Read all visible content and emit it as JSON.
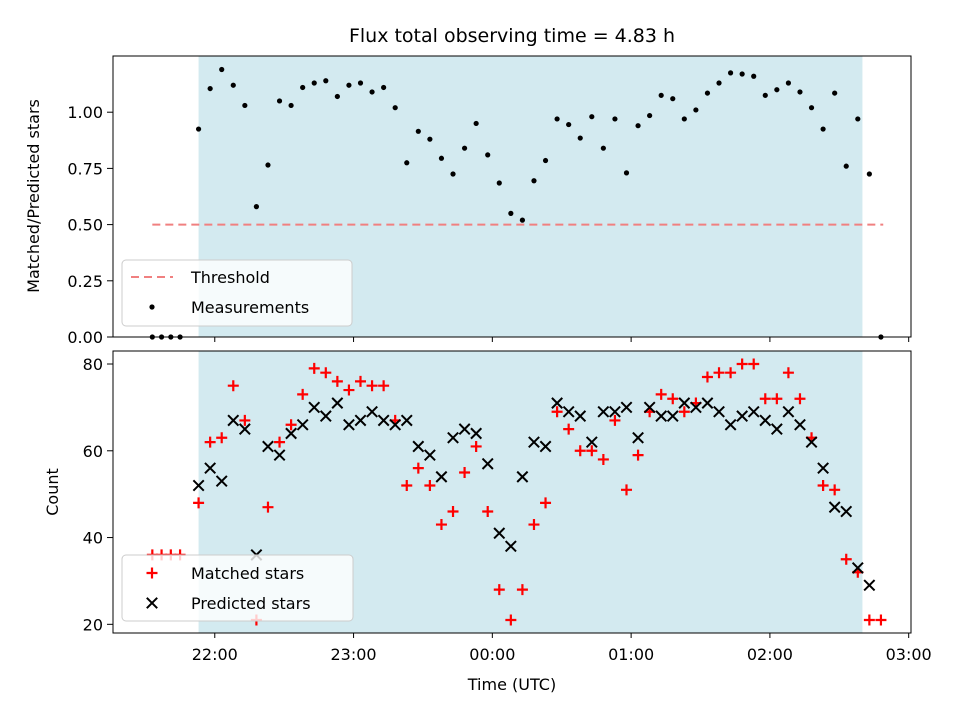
{
  "chart_data": [
    {
      "type": "scatter",
      "title": "Flux total observing time = 4.83 h",
      "xlabel": "",
      "ylabel": "Matched/Predicted stars",
      "ylim": [
        0,
        1.25
      ],
      "yticks": [
        "0.00",
        "0.25",
        "0.50",
        "0.75",
        "1.00"
      ],
      "x_time_range": [
        "21:16",
        "03:01"
      ],
      "shaded_span": [
        "21:53",
        "02:40"
      ],
      "shade_color": "#d3eaf0",
      "threshold": 0.5,
      "legend_position": "lower-left",
      "legend": [
        {
          "label": "Threshold",
          "style": "dashed-line",
          "color": "#f08080"
        },
        {
          "label": "Measurements",
          "style": "dot",
          "color": "#000000"
        }
      ],
      "series": [
        {
          "name": "Measurements",
          "color": "#000000",
          "points": [
            [
              "21:33",
              0.0
            ],
            [
              "21:37",
              0.0
            ],
            [
              "21:41",
              0.0
            ],
            [
              "21:45",
              0.0
            ],
            [
              "21:53",
              0.925
            ],
            [
              "21:58",
              1.105
            ],
            [
              "22:03",
              1.19
            ],
            [
              "22:08",
              1.12
            ],
            [
              "22:13",
              1.03
            ],
            [
              "22:18",
              0.58
            ],
            [
              "22:23",
              0.765
            ],
            [
              "22:28",
              1.05
            ],
            [
              "22:33",
              1.03
            ],
            [
              "22:38",
              1.11
            ],
            [
              "22:43",
              1.13
            ],
            [
              "22:48",
              1.14
            ],
            [
              "22:53",
              1.07
            ],
            [
              "22:58",
              1.12
            ],
            [
              "23:03",
              1.13
            ],
            [
              "23:08",
              1.09
            ],
            [
              "23:13",
              1.11
            ],
            [
              "23:18",
              1.02
            ],
            [
              "23:23",
              0.775
            ],
            [
              "23:28",
              0.915
            ],
            [
              "23:33",
              0.88
            ],
            [
              "23:38",
              0.795
            ],
            [
              "23:43",
              0.725
            ],
            [
              "23:48",
              0.84
            ],
            [
              "23:53",
              0.95
            ],
            [
              "23:58",
              0.81
            ],
            [
              "00:03",
              0.685
            ],
            [
              "00:08",
              0.55
            ],
            [
              "00:13",
              0.52
            ],
            [
              "00:18",
              0.695
            ],
            [
              "00:23",
              0.785
            ],
            [
              "00:28",
              0.97
            ],
            [
              "00:33",
              0.945
            ],
            [
              "00:38",
              0.885
            ],
            [
              "00:43",
              0.98
            ],
            [
              "00:48",
              0.84
            ],
            [
              "00:53",
              0.97
            ],
            [
              "00:58",
              0.73
            ],
            [
              "01:03",
              0.94
            ],
            [
              "01:08",
              0.985
            ],
            [
              "01:13",
              1.075
            ],
            [
              "01:18",
              1.06
            ],
            [
              "01:23",
              0.97
            ],
            [
              "01:28",
              1.01
            ],
            [
              "01:33",
              1.085
            ],
            [
              "01:38",
              1.13
            ],
            [
              "01:43",
              1.175
            ],
            [
              "01:48",
              1.17
            ],
            [
              "01:53",
              1.16
            ],
            [
              "01:58",
              1.075
            ],
            [
              "02:03",
              1.1
            ],
            [
              "02:08",
              1.13
            ],
            [
              "02:13",
              1.09
            ],
            [
              "02:18",
              1.02
            ],
            [
              "02:23",
              0.925
            ],
            [
              "02:28",
              1.085
            ],
            [
              "02:33",
              0.76
            ],
            [
              "02:38",
              0.97
            ],
            [
              "02:43",
              0.725
            ],
            [
              "02:48",
              0.0
            ]
          ]
        }
      ]
    },
    {
      "type": "scatter",
      "title": "",
      "xlabel": "Time (UTC)",
      "ylabel": "Count",
      "ylim": [
        18,
        83
      ],
      "yticks": [
        "20",
        "40",
        "60",
        "80"
      ],
      "xticks": [
        "22:00",
        "23:00",
        "00:00",
        "01:00",
        "02:00",
        "03:00"
      ],
      "x_time_range": [
        "21:16",
        "03:01"
      ],
      "shaded_span": [
        "21:53",
        "02:40"
      ],
      "shade_color": "#d3eaf0",
      "legend_position": "lower-left",
      "legend": [
        {
          "label": "Matched stars",
          "style": "plus",
          "color": "#ff0000"
        },
        {
          "label": "Predicted stars",
          "style": "x",
          "color": "#000000"
        }
      ],
      "series": [
        {
          "name": "Matched stars",
          "marker": "plus",
          "color": "#ff0000",
          "points": [
            [
              "21:33",
              36
            ],
            [
              "21:37",
              36
            ],
            [
              "21:41",
              36
            ],
            [
              "21:45",
              36
            ],
            [
              "21:53",
              48
            ],
            [
              "21:58",
              62
            ],
            [
              "22:03",
              63
            ],
            [
              "22:08",
              75
            ],
            [
              "22:13",
              67
            ],
            [
              "22:18",
              21
            ],
            [
              "22:23",
              47
            ],
            [
              "22:28",
              62
            ],
            [
              "22:33",
              66
            ],
            [
              "22:38",
              73
            ],
            [
              "22:43",
              79
            ],
            [
              "22:48",
              78
            ],
            [
              "22:53",
              76
            ],
            [
              "22:58",
              74
            ],
            [
              "23:03",
              76
            ],
            [
              "23:08",
              75
            ],
            [
              "23:13",
              75
            ],
            [
              "23:18",
              67
            ],
            [
              "23:23",
              52
            ],
            [
              "23:28",
              56
            ],
            [
              "23:33",
              52
            ],
            [
              "23:38",
              43
            ],
            [
              "23:43",
              46
            ],
            [
              "23:48",
              55
            ],
            [
              "23:53",
              61
            ],
            [
              "23:58",
              46
            ],
            [
              "00:03",
              28
            ],
            [
              "00:08",
              21
            ],
            [
              "00:13",
              28
            ],
            [
              "00:18",
              43
            ],
            [
              "00:23",
              48
            ],
            [
              "00:28",
              69
            ],
            [
              "00:33",
              65
            ],
            [
              "00:38",
              60
            ],
            [
              "00:43",
              60
            ],
            [
              "00:48",
              58
            ],
            [
              "00:53",
              67
            ],
            [
              "00:58",
              51
            ],
            [
              "01:03",
              59
            ],
            [
              "01:08",
              69
            ],
            [
              "01:13",
              73
            ],
            [
              "01:18",
              72
            ],
            [
              "01:23",
              69
            ],
            [
              "01:28",
              71
            ],
            [
              "01:33",
              77
            ],
            [
              "01:38",
              78
            ],
            [
              "01:43",
              78
            ],
            [
              "01:48",
              80
            ],
            [
              "01:53",
              80
            ],
            [
              "01:58",
              72
            ],
            [
              "02:03",
              72
            ],
            [
              "02:08",
              78
            ],
            [
              "02:13",
              72
            ],
            [
              "02:18",
              63
            ],
            [
              "02:23",
              52
            ],
            [
              "02:28",
              51
            ],
            [
              "02:33",
              35
            ],
            [
              "02:38",
              32
            ],
            [
              "02:43",
              21
            ],
            [
              "02:48",
              21
            ]
          ]
        },
        {
          "name": "Predicted stars",
          "marker": "x",
          "color": "#000000",
          "points": [
            [
              "21:53",
              52
            ],
            [
              "21:58",
              56
            ],
            [
              "22:03",
              53
            ],
            [
              "22:08",
              67
            ],
            [
              "22:13",
              65
            ],
            [
              "22:18",
              36
            ],
            [
              "22:23",
              61
            ],
            [
              "22:28",
              59
            ],
            [
              "22:33",
              64
            ],
            [
              "22:38",
              66
            ],
            [
              "22:43",
              70
            ],
            [
              "22:48",
              68
            ],
            [
              "22:53",
              71
            ],
            [
              "22:58",
              66
            ],
            [
              "23:03",
              67
            ],
            [
              "23:08",
              69
            ],
            [
              "23:13",
              67
            ],
            [
              "23:18",
              66
            ],
            [
              "23:23",
              67
            ],
            [
              "23:28",
              61
            ],
            [
              "23:33",
              59
            ],
            [
              "23:38",
              54
            ],
            [
              "23:43",
              63
            ],
            [
              "23:48",
              65
            ],
            [
              "23:53",
              64
            ],
            [
              "23:58",
              57
            ],
            [
              "00:03",
              41
            ],
            [
              "00:08",
              38
            ],
            [
              "00:13",
              54
            ],
            [
              "00:18",
              62
            ],
            [
              "00:23",
              61
            ],
            [
              "00:28",
              71
            ],
            [
              "00:33",
              69
            ],
            [
              "00:38",
              68
            ],
            [
              "00:43",
              62
            ],
            [
              "00:48",
              69
            ],
            [
              "00:53",
              69
            ],
            [
              "00:58",
              70
            ],
            [
              "01:03",
              63
            ],
            [
              "01:08",
              70
            ],
            [
              "01:13",
              68
            ],
            [
              "01:18",
              68
            ],
            [
              "01:23",
              71
            ],
            [
              "01:28",
              70
            ],
            [
              "01:33",
              71
            ],
            [
              "01:38",
              69
            ],
            [
              "01:43",
              66
            ],
            [
              "01:48",
              68
            ],
            [
              "01:53",
              69
            ],
            [
              "01:58",
              67
            ],
            [
              "02:03",
              65
            ],
            [
              "02:08",
              69
            ],
            [
              "02:13",
              66
            ],
            [
              "02:18",
              62
            ],
            [
              "02:23",
              56
            ],
            [
              "02:28",
              47
            ],
            [
              "02:33",
              46
            ],
            [
              "02:38",
              33
            ],
            [
              "02:43",
              29
            ]
          ]
        }
      ]
    }
  ]
}
